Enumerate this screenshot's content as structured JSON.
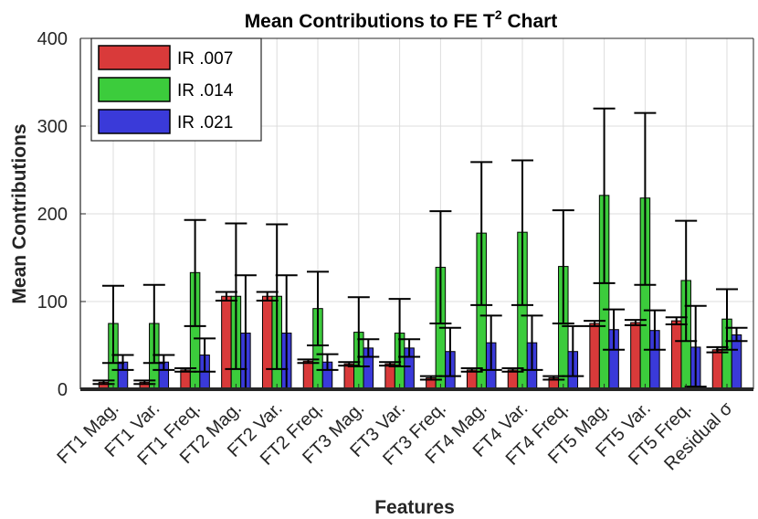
{
  "chart_data": {
    "type": "bar",
    "title": "Mean Contributions to FE T",
    "title_sup": "2",
    "title_suffix": " Chart",
    "xlabel": "Features",
    "ylabel": "Mean Contributions",
    "ylim": [
      0,
      400
    ],
    "yticks": [
      "0",
      "100",
      "200",
      "300",
      "400"
    ],
    "grid": true,
    "legend_position": "top-left",
    "categories": [
      "FT1 Mag.",
      "FT1 Var.",
      "FT1 Freq.",
      "FT2 Mag.",
      "FT2 Var.",
      "FT2 Freq.",
      "FT3 Mag.",
      "FT3 Var.",
      "FT3 Freq.",
      "FT4 Mag.",
      "FT4 Var.",
      "FT4 Freq.",
      "FT5 Mag.",
      "FT5 Var.",
      "FT5 Freq.",
      "Residual σ"
    ],
    "series": [
      {
        "name": "IR .007",
        "color": "#d93a3a",
        "values": [
          8,
          8,
          22,
          106,
          106,
          32,
          29,
          29,
          13,
          22,
          22,
          13,
          75,
          76,
          78,
          45
        ],
        "err_low": [
          6,
          6,
          20,
          101,
          101,
          30,
          27,
          27,
          11,
          20,
          20,
          11,
          72,
          73,
          74,
          42
        ],
        "err_high": [
          10,
          10,
          24,
          111,
          111,
          34,
          31,
          31,
          15,
          24,
          24,
          15,
          78,
          79,
          82,
          48
        ]
      },
      {
        "name": "IR .014",
        "color": "#3ccc3c",
        "values": [
          75,
          75,
          133,
          106,
          106,
          92,
          65,
          64,
          139,
          178,
          179,
          140,
          221,
          218,
          124,
          80
        ],
        "err_low": [
          30,
          30,
          72,
          23,
          23,
          50,
          26,
          26,
          75,
          96,
          96,
          75,
          121,
          119,
          55,
          45
        ],
        "err_high": [
          118,
          119,
          193,
          189,
          188,
          134,
          105,
          103,
          203,
          259,
          261,
          204,
          320,
          315,
          192,
          114
        ]
      },
      {
        "name": "IR .021",
        "color": "#3a3ad9",
        "values": [
          31,
          31,
          39,
          64,
          64,
          31,
          47,
          47,
          43,
          53,
          53,
          43,
          68,
          67,
          48,
          62
        ],
        "err_low": [
          22,
          22,
          20,
          0,
          0,
          22,
          37,
          37,
          15,
          22,
          22,
          15,
          45,
          45,
          3,
          55
        ],
        "err_high": [
          39,
          39,
          58,
          130,
          130,
          40,
          57,
          57,
          70,
          84,
          84,
          72,
          91,
          90,
          95,
          70
        ]
      }
    ]
  }
}
